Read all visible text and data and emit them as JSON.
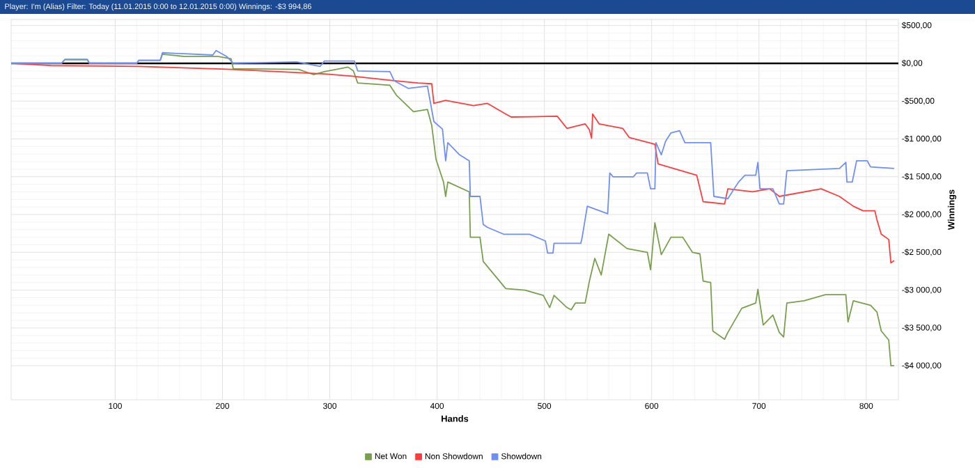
{
  "chart_data": {
    "type": "line",
    "title": "Player: I'm (Alias)  Filter: Today (11.01.2015 0:00 to 12.01.2015 0:00)  Winnings: -$3 994,86",
    "xlabel": "Hands",
    "ylabel": "Winnings",
    "xlim": [
      3,
      830
    ],
    "xticks": [
      100,
      200,
      300,
      400,
      500,
      600,
      700,
      800
    ],
    "ylim": [
      -4450,
      580
    ],
    "yticks": [
      {
        "value": 500,
        "label": "$500,00"
      },
      {
        "value": 0,
        "label": "$0,00"
      },
      {
        "value": -500,
        "label": "-$500,00"
      },
      {
        "value": -1000,
        "label": "-$1 000,00"
      },
      {
        "value": -1500,
        "label": "-$1 500,00"
      },
      {
        "value": -2000,
        "label": "-$2 000,00"
      },
      {
        "value": -2500,
        "label": "-$2 500,00"
      },
      {
        "value": -3000,
        "label": "-$3 000,00"
      },
      {
        "value": -3500,
        "label": "-$3 500,00"
      },
      {
        "value": -4000,
        "label": "-$4 000,00"
      }
    ],
    "grid": true,
    "legend": "bottom",
    "ref_lines": [
      {
        "axis": "y",
        "value": 0,
        "color": "#000000"
      }
    ],
    "series": [
      {
        "name": "Net Won",
        "color": "#77a04a",
        "x": [
          3,
          50,
          53,
          74,
          76,
          120,
          122,
          142,
          144,
          165,
          196,
          208,
          210,
          271,
          285,
          295,
          317,
          322,
          326,
          356,
          362,
          378,
          391,
          395,
          399,
          406,
          408,
          410,
          430,
          431,
          440,
          443,
          464,
          482,
          499,
          505,
          509,
          521,
          525,
          529,
          538,
          542,
          547,
          553,
          560,
          577,
          596,
          599,
          603,
          609,
          618,
          629,
          638,
          645,
          648,
          655,
          657,
          668,
          671,
          684,
          697,
          699,
          704,
          713,
          719,
          723,
          726,
          742,
          762,
          781,
          783,
          788,
          804,
          810,
          814,
          821,
          823,
          826
        ],
        "values": [
          0,
          0,
          50,
          50,
          0,
          0,
          40,
          40,
          120,
          90,
          90,
          60,
          -70,
          -80,
          -150,
          -110,
          -50,
          -100,
          -260,
          -290,
          -420,
          -640,
          -610,
          -820,
          -1270,
          -1570,
          -1760,
          -1570,
          -1700,
          -2300,
          -2300,
          -2620,
          -2980,
          -3000,
          -3070,
          -3230,
          -3070,
          -3230,
          -3260,
          -3170,
          -3170,
          -2880,
          -2580,
          -2800,
          -2260,
          -2450,
          -2500,
          -2730,
          -2110,
          -2530,
          -2300,
          -2300,
          -2500,
          -2520,
          -2880,
          -2900,
          -3540,
          -3650,
          -3560,
          -3240,
          -3170,
          -2990,
          -3460,
          -3330,
          -3560,
          -3620,
          -3170,
          -3140,
          -3060,
          -3060,
          -3420,
          -3140,
          -3200,
          -3290,
          -3540,
          -3660,
          -4000,
          -4000
        ]
      },
      {
        "name": "Non Showdown",
        "color": "#ff3b3b",
        "x": [
          3,
          40,
          122,
          209,
          252,
          295,
          321,
          360,
          382,
          395,
          397,
          408,
          434,
          447,
          464,
          469,
          512,
          521,
          538,
          542,
          544,
          545,
          551,
          573,
          579,
          603,
          606,
          642,
          648,
          668,
          671,
          694,
          710,
          719,
          758,
          775,
          788,
          797,
          808,
          810,
          814,
          821,
          823,
          826
        ],
        "values": [
          0,
          -30,
          -40,
          -80,
          -110,
          -140,
          -170,
          -230,
          -260,
          -270,
          -530,
          -490,
          -560,
          -530,
          -670,
          -710,
          -700,
          -860,
          -800,
          -880,
          -990,
          -670,
          -800,
          -860,
          -980,
          -1070,
          -1330,
          -1480,
          -1830,
          -1860,
          -1660,
          -1700,
          -1660,
          -1760,
          -1660,
          -1760,
          -1890,
          -1950,
          -1950,
          -2070,
          -2260,
          -2330,
          -2640,
          -2610
        ]
      },
      {
        "name": "Showdown",
        "color": "#6d8ff7",
        "x": [
          3,
          50,
          53,
          74,
          76,
          120,
          122,
          142,
          144,
          191,
          194,
          204,
          210,
          269,
          291,
          295,
          323,
          326,
          356,
          360,
          373,
          391,
          397,
          405,
          408,
          410,
          421,
          430,
          431,
          440,
          443,
          447,
          462,
          486,
          501,
          503,
          508,
          509,
          534,
          535,
          540,
          559,
          561,
          564,
          583,
          586,
          596,
          599,
          603,
          604,
          609,
          613,
          618,
          626,
          631,
          655,
          658,
          671,
          681,
          687,
          697,
          699,
          701,
          713,
          719,
          723,
          726,
          775,
          781,
          782,
          787,
          791,
          801,
          804,
          826
        ],
        "values": [
          0,
          0,
          50,
          50,
          0,
          0,
          40,
          40,
          140,
          110,
          170,
          90,
          0,
          20,
          -40,
          30,
          30,
          -100,
          -110,
          -230,
          -330,
          -300,
          -770,
          -870,
          -1290,
          -1050,
          -1210,
          -1290,
          -1760,
          -1760,
          -2130,
          -2170,
          -2260,
          -2260,
          -2350,
          -2510,
          -2510,
          -2380,
          -2380,
          -2320,
          -1890,
          -1990,
          -1450,
          -1500,
          -1500,
          -1450,
          -1450,
          -1660,
          -1660,
          -1050,
          -1210,
          -1030,
          -920,
          -890,
          -1050,
          -1050,
          -1760,
          -1790,
          -1570,
          -1480,
          -1480,
          -1310,
          -1660,
          -1660,
          -1860,
          -1860,
          -1420,
          -1390,
          -1310,
          -1570,
          -1570,
          -1290,
          -1290,
          -1370,
          -1390
        ]
      }
    ]
  }
}
